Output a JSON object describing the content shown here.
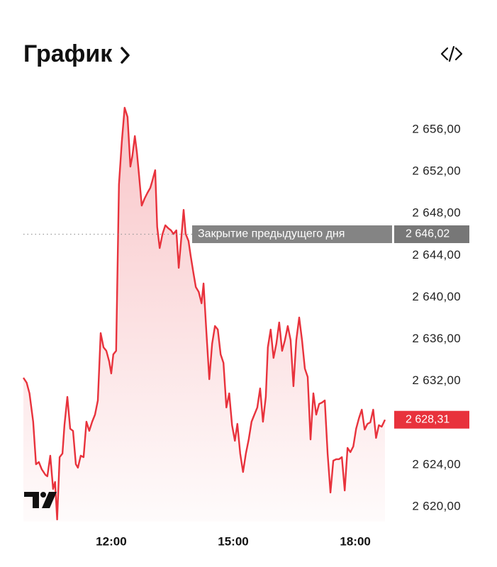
{
  "chart_data": {
    "type": "line",
    "title": "График",
    "color": "#e8323c",
    "x": [
      9.84,
      9.92,
      9.99,
      10.08,
      10.15,
      10.22,
      10.29,
      10.38,
      10.43,
      10.5,
      10.57,
      10.62,
      10.67,
      10.73,
      10.8,
      10.85,
      10.92,
      10.99,
      11.06,
      11.13,
      11.18,
      11.25,
      11.32,
      11.39,
      11.46,
      11.53,
      11.6,
      11.67,
      11.74,
      11.81,
      11.88,
      11.95,
      12.0,
      12.05,
      12.12,
      12.19,
      12.26,
      12.33,
      12.4,
      12.47,
      12.52,
      12.58,
      12.63,
      12.68,
      12.75,
      12.82,
      12.89,
      12.96,
      13.01,
      13.08,
      13.13,
      13.19,
      13.26,
      13.33,
      13.4,
      13.47,
      13.53,
      13.6,
      13.66,
      13.73,
      13.78,
      13.83,
      13.9,
      13.95,
      14.02,
      14.08,
      14.15,
      14.22,
      14.27,
      14.34,
      14.41,
      14.48,
      14.55,
      14.62,
      14.69,
      14.76,
      14.83,
      14.9,
      14.97,
      15.04,
      15.1,
      15.17,
      15.24,
      15.31,
      15.38,
      15.45,
      15.52,
      15.59,
      15.66,
      15.73,
      15.8,
      15.85,
      15.92,
      15.99,
      16.06,
      16.13,
      16.2,
      16.27,
      16.34,
      16.41,
      16.48,
      16.55,
      16.62,
      16.69,
      16.76,
      16.83,
      16.9,
      16.97,
      17.04,
      17.11,
      17.18,
      17.25,
      17.32,
      17.39,
      17.46,
      17.53,
      17.6,
      17.67,
      17.74,
      17.81,
      17.88,
      17.95,
      18.02,
      18.09,
      18.16,
      18.23,
      18.3,
      18.37,
      18.44,
      18.51,
      18.58,
      18.65,
      18.73
    ],
    "values": [
      2632.32,
      2631.85,
      2630.83,
      2628.12,
      2624.06,
      2624.27,
      2623.59,
      2623.05,
      2622.91,
      2624.88,
      2621.7,
      2622.37,
      2618.79,
      2624.74,
      2625.08,
      2627.79,
      2630.49,
      2627.45,
      2627.25,
      2624.06,
      2623.73,
      2624.88,
      2624.74,
      2628.12,
      2627.25,
      2628.12,
      2628.8,
      2630.15,
      2636.58,
      2635.23,
      2634.89,
      2633.88,
      2632.73,
      2634.55,
      2634.89,
      2650.79,
      2654.85,
      2658.1,
      2657.22,
      2652.48,
      2653.5,
      2655.39,
      2653.83,
      2651.81,
      2648.76,
      2649.44,
      2649.98,
      2650.45,
      2651.13,
      2652.14,
      2646.73,
      2644.7,
      2646.05,
      2646.87,
      2646.6,
      2646.39,
      2646.05,
      2646.39,
      2642.81,
      2646.05,
      2648.35,
      2646.05,
      2645.38,
      2644.02,
      2642.33,
      2640.98,
      2640.51,
      2639.42,
      2641.32,
      2636.58,
      2632.18,
      2635.57,
      2637.26,
      2636.92,
      2634.55,
      2633.74,
      2629.48,
      2630.83,
      2627.79,
      2626.3,
      2627.92,
      2625.08,
      2623.32,
      2625.08,
      2626.43,
      2628.12,
      2628.8,
      2629.48,
      2631.3,
      2628.12,
      2630.49,
      2635.23,
      2636.92,
      2634.21,
      2635.57,
      2637.6,
      2634.89,
      2635.91,
      2637.26,
      2635.91,
      2631.51,
      2635.91,
      2638.07,
      2635.91,
      2633.2,
      2632.39,
      2626.43,
      2630.83,
      2628.8,
      2629.82,
      2629.95,
      2630.15,
      2625.08,
      2621.36,
      2624.4,
      2624.54,
      2624.54,
      2624.74,
      2621.56,
      2625.62,
      2625.22,
      2625.76,
      2627.45,
      2628.46,
      2629.27,
      2627.38,
      2627.92,
      2628.06,
      2629.27,
      2626.57,
      2627.79,
      2627.65,
      2628.31
    ],
    "xlim": [
      9.84,
      18.73
    ],
    "xticks": [
      {
        "value": 12,
        "label": "12:00"
      },
      {
        "value": 15,
        "label": "15:00"
      },
      {
        "value": 18,
        "label": "18:00"
      }
    ],
    "ylim": [
      2618.6,
      2659
    ],
    "yticks": [
      {
        "value": 2620,
        "label": "2 620,00"
      },
      {
        "value": 2624,
        "label": "2 624,00"
      },
      {
        "value": 2628,
        "label": "2 628,00"
      },
      {
        "value": 2632,
        "label": "2 632,00"
      },
      {
        "value": 2636,
        "label": "2 636,00"
      },
      {
        "value": 2640,
        "label": "2 640,00"
      },
      {
        "value": 2644,
        "label": "2 644,00"
      },
      {
        "value": 2648,
        "label": "2 648,00"
      },
      {
        "value": 2652,
        "label": "2 652,00"
      },
      {
        "value": 2656,
        "label": "2 656,00"
      }
    ],
    "reference_line": {
      "value": 2646.02,
      "label": "Закрытие предыдущего дня",
      "value_label": "2 646,02"
    },
    "current_price": {
      "value": 2628.31,
      "label": "2 628,31"
    }
  }
}
